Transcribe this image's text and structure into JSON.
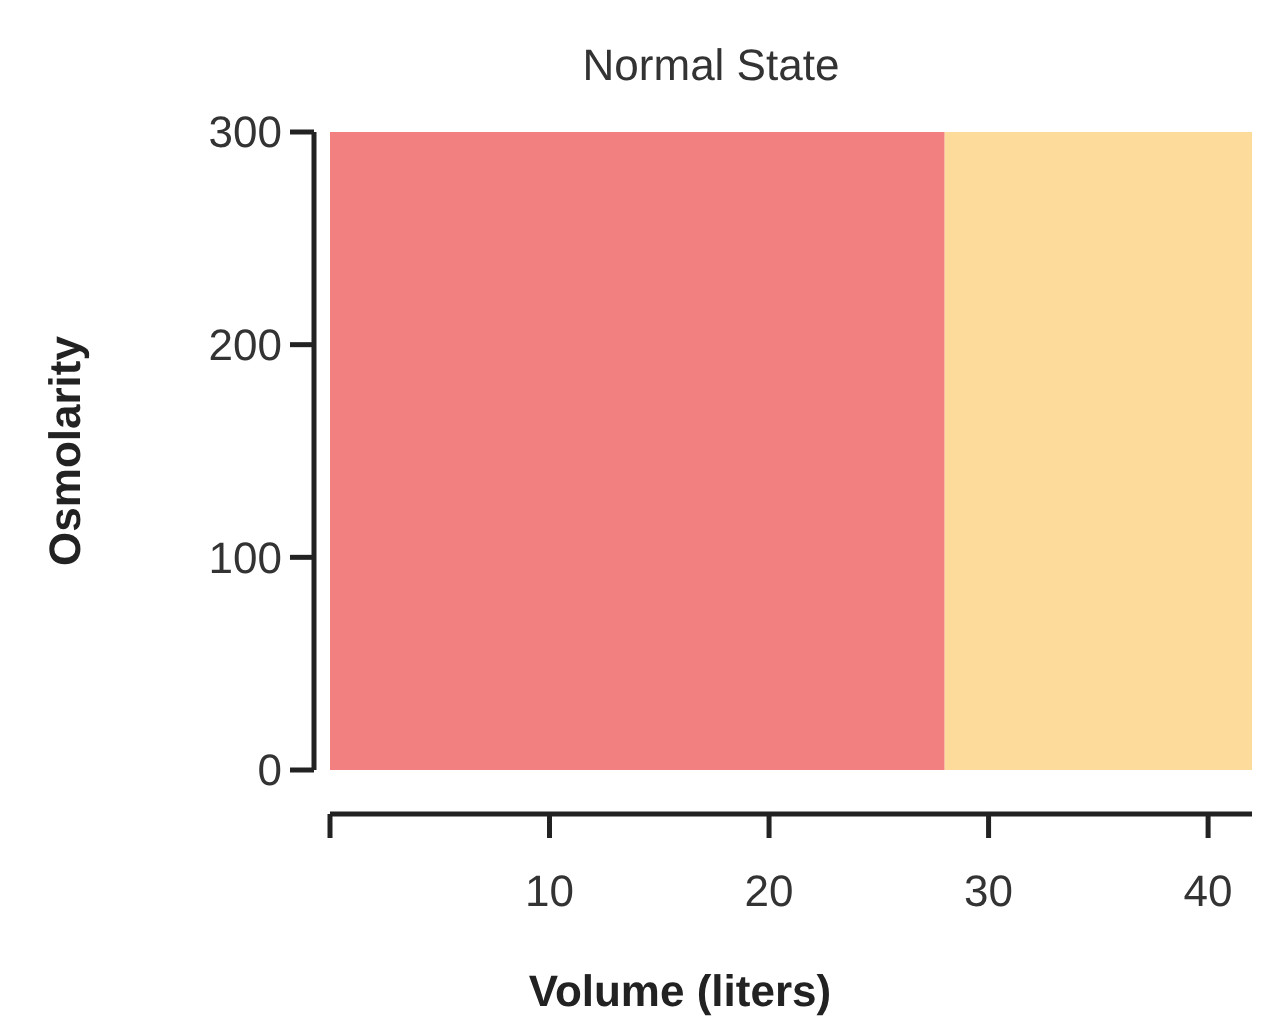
{
  "chart_data": {
    "type": "area",
    "title": "Normal State",
    "xlabel": "Volume (liters)",
    "ylabel": "Osmolarity",
    "xlim": [
      0,
      42
    ],
    "xticks": [
      {
        "value": 0,
        "label": null
      },
      10,
      20,
      30,
      40
    ],
    "ylim": [
      0,
      300
    ],
    "yticks": [
      0,
      100,
      200,
      300
    ],
    "series": [
      {
        "color": "#f28080",
        "x": [
          0,
          28
        ],
        "values": [
          300,
          300
        ]
      },
      {
        "color": "#fddc9b",
        "x": [
          28,
          42
        ],
        "values": [
          300,
          300
        ]
      }
    ]
  }
}
